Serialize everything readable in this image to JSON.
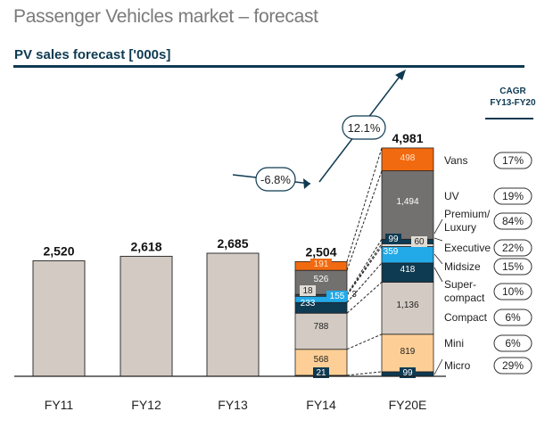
{
  "page": {
    "title": "Passenger Vehicles market – forecast",
    "subtitle": "PV sales forecast ['000s]"
  },
  "chart_data": {
    "type": "bar",
    "title": "PV sales forecast ['000s]",
    "xlabel": "",
    "ylabel": "",
    "categories": [
      "FY11",
      "FY12",
      "FY13",
      "FY14",
      "FY20E"
    ],
    "totals": [
      2520,
      2618,
      2685,
      2504,
      4981
    ],
    "total_labels": [
      "2,520",
      "2,618",
      "2,685",
      "2,504",
      "4,981"
    ],
    "simple_bar_color": "#d3cbc3",
    "segments": [
      {
        "name": "Micro",
        "color": "#0e3a52",
        "text_color": "#ffffff",
        "FY14": 21,
        "FY20E": 99,
        "labels": [
          "21",
          "99"
        ]
      },
      {
        "name": "Mini",
        "color": "#fdcf96",
        "text_color": "#222222",
        "FY14": 568,
        "FY20E": 819,
        "labels": [
          "568",
          "819"
        ]
      },
      {
        "name": "Compact",
        "color": "#d3cbc3",
        "text_color": "#222222",
        "FY14": 788,
        "FY20E": 1136,
        "labels": [
          "788",
          "1,136"
        ]
      },
      {
        "name": "Super-compact",
        "color": "#0e3a52",
        "text_color": "#ffffff",
        "FY14": 233,
        "FY20E": 418,
        "labels": [
          "233",
          "418"
        ]
      },
      {
        "name": "Midsize",
        "color": "#22aae8",
        "text_color": "#ffffff",
        "FY14": 155,
        "FY20E": 359,
        "labels": [
          "155",
          "359"
        ]
      },
      {
        "name": "Executive",
        "color": "#e0dbd4",
        "text_color": "#222222",
        "FY14": 3,
        "FY20E": 60,
        "labels": [
          "3",
          "60"
        ]
      },
      {
        "name": "Premium/Luxury",
        "color": "#0e3a52",
        "text_color": "#ffffff",
        "FY14": 18,
        "FY20E": 99,
        "labels": [
          "18",
          "99"
        ]
      },
      {
        "name": "UV",
        "color": "#737070",
        "text_color": "#ffffff",
        "FY14": 526,
        "FY20E": 1494,
        "labels": [
          "526",
          "1,494"
        ]
      },
      {
        "name": "Vans",
        "color": "#f26a10",
        "text_color": "#ffe2c8",
        "FY14": 191,
        "FY20E": 498,
        "labels": [
          "191",
          "498"
        ]
      }
    ],
    "legend": {
      "header": [
        "CAGR",
        "FY13-FY20"
      ],
      "items": [
        {
          "label": "Vans",
          "cagr": "17%"
        },
        {
          "label": "UV",
          "cagr": "19%"
        },
        {
          "label": "Premium/ Luxury",
          "cagr": "84%"
        },
        {
          "label": "Executive",
          "cagr": "22%"
        },
        {
          "label": "Midsize",
          "cagr": "15%"
        },
        {
          "label": "Super- compact",
          "cagr": "10%"
        },
        {
          "label": "Compact",
          "cagr": "6%"
        },
        {
          "label": "Mini",
          "cagr": "6%"
        },
        {
          "label": "Micro",
          "cagr": "29%"
        }
      ]
    },
    "annotations": [
      {
        "label": "-6.8%",
        "meaning": "growth FY13 to FY14"
      },
      {
        "label": "12.1%",
        "meaning": "growth FY14 to FY20E"
      }
    ],
    "accent_color": "#0e3a52",
    "ylim": [
      0,
      5000
    ],
    "grid": false
  }
}
